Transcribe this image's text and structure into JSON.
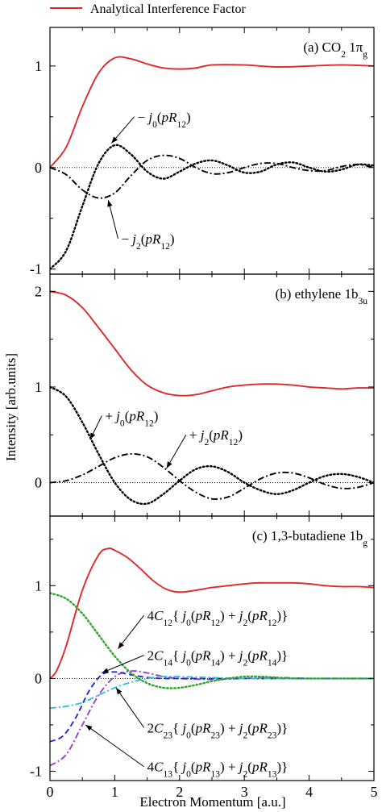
{
  "legend": {
    "label": "Analytical Interference Factor",
    "color": "#e0282b"
  },
  "xlabel": "Electron Momentum [a.u.]",
  "ylabel": "Intensity [arb.units]",
  "colors": {
    "analytical": "#e0282b",
    "black": "#000000",
    "green": "#2aa82a",
    "blue": "#1f2bd8",
    "cyan": "#2bc4d8",
    "purple": "#9a3fd0"
  },
  "chart_data": [
    {
      "type": "line",
      "panel": "a",
      "title_main": "(a) CO",
      "title_sub": "2",
      "title_tail": " 1π",
      "title_tail_sub": "g",
      "xlim": [
        0,
        5
      ],
      "ylim": [
        -1.05,
        1.38
      ],
      "xticks": [
        0,
        1,
        2,
        3,
        4,
        5
      ],
      "yticks": [
        -1,
        0,
        1
      ],
      "ytick_labels": [
        "-1",
        "0",
        "1"
      ],
      "legend": "top-left",
      "series": [
        {
          "name": "Analytical Interference Factor",
          "color": "analytical",
          "style": "solid",
          "x": [
            0,
            0.25,
            0.5,
            0.75,
            1.0,
            1.25,
            1.5,
            1.75,
            2.0,
            2.25,
            2.5,
            3.0,
            3.5,
            4.0,
            4.5,
            5.0
          ],
          "y": [
            0,
            0.2,
            0.6,
            0.93,
            1.08,
            1.07,
            1.02,
            0.98,
            0.97,
            0.98,
            1.01,
            1.01,
            0.99,
            1.0,
            1.01,
            1.0
          ]
        },
        {
          "name": "− j0(pR12)",
          "color": "black",
          "style": "dotted",
          "x": [
            0,
            0.25,
            0.5,
            0.75,
            1.0,
            1.25,
            1.5,
            1.75,
            2.0,
            2.25,
            2.5,
            2.75,
            3.0,
            3.25,
            3.5,
            3.75,
            4.0,
            4.25,
            4.5,
            4.75,
            5.0
          ],
          "y": [
            -1.0,
            -0.82,
            -0.38,
            0.04,
            0.22,
            0.13,
            -0.04,
            -0.11,
            -0.04,
            0.04,
            0.07,
            0.02,
            -0.05,
            -0.04,
            0.03,
            0.05,
            0.0,
            -0.04,
            -0.02,
            0.03,
            0.02
          ]
        },
        {
          "name": "− j2(pR12)",
          "color": "black",
          "style": "dashdot",
          "x": [
            0,
            0.25,
            0.5,
            0.75,
            1.0,
            1.25,
            1.5,
            1.75,
            2.0,
            2.25,
            2.5,
            2.75,
            3.0,
            3.25,
            3.5,
            3.75,
            4.0,
            4.25,
            4.5,
            4.75,
            5.0
          ],
          "y": [
            0,
            -0.07,
            -0.22,
            -0.3,
            -0.25,
            -0.08,
            0.07,
            0.12,
            0.09,
            0.0,
            -0.06,
            -0.05,
            0.0,
            0.04,
            0.04,
            0.0,
            -0.03,
            -0.03,
            0.01,
            0.03,
            0.0
          ]
        }
      ],
      "annotations": [
        {
          "text_pre": "− ",
          "text_it": "j",
          "sub": "0",
          "text_post": "(",
          "text_it2": "pR",
          "sub2": "12",
          "text_end": ")",
          "x": 1.35,
          "y": 0.5,
          "arrow_to": [
            0.95,
            0.24
          ]
        },
        {
          "text_pre": "− ",
          "text_it": "j",
          "sub": "2",
          "text_post": "(",
          "text_it2": "pR",
          "sub2": "12",
          "text_end": ")",
          "x": 1.1,
          "y": -0.7,
          "arrow_to": [
            0.9,
            -0.32
          ]
        }
      ]
    },
    {
      "type": "line",
      "panel": "b",
      "title_main": "(b) ethylene 1b",
      "title_sub": "3u",
      "title_tail": "",
      "title_tail_sub": "",
      "xlim": [
        0,
        5
      ],
      "ylim": [
        -0.35,
        2.18
      ],
      "xticks": [
        0,
        1,
        2,
        3,
        4,
        5
      ],
      "yticks": [
        0,
        1,
        2
      ],
      "ytick_labels": [
        "0",
        "1",
        "2"
      ],
      "series": [
        {
          "name": "Analytical Interference Factor",
          "color": "analytical",
          "style": "solid",
          "x": [
            0,
            0.25,
            0.5,
            0.75,
            1.0,
            1.25,
            1.5,
            1.75,
            2.0,
            2.25,
            2.5,
            2.75,
            3.0,
            3.25,
            3.5,
            3.75,
            4.0,
            4.25,
            4.5,
            4.75,
            5.0
          ],
          "y": [
            2.0,
            1.96,
            1.83,
            1.62,
            1.4,
            1.18,
            1.02,
            0.94,
            0.91,
            0.92,
            0.96,
            1.0,
            1.02,
            1.03,
            1.03,
            1.02,
            1.0,
            0.99,
            0.98,
            0.99,
            0.99
          ]
        },
        {
          "name": "+ j0(pR12)",
          "color": "black",
          "style": "dotted",
          "x": [
            0,
            0.25,
            0.5,
            0.75,
            1.0,
            1.25,
            1.5,
            1.75,
            2.0,
            2.25,
            2.5,
            2.75,
            3.0,
            3.25,
            3.5,
            3.75,
            4.0,
            4.25,
            4.5,
            4.75,
            5.0
          ],
          "y": [
            1.0,
            0.9,
            0.63,
            0.3,
            0.0,
            -0.18,
            -0.22,
            -0.12,
            0.02,
            0.14,
            0.17,
            0.11,
            0.0,
            -0.08,
            -0.12,
            -0.08,
            0.0,
            0.07,
            0.09,
            0.06,
            0.0
          ]
        },
        {
          "name": "+ j2(pR12)",
          "color": "black",
          "style": "dashdot",
          "x": [
            0,
            0.25,
            0.5,
            0.75,
            1.0,
            1.25,
            1.5,
            1.75,
            2.0,
            2.25,
            2.5,
            2.75,
            3.0,
            3.25,
            3.5,
            3.75,
            4.0,
            4.25,
            4.5,
            4.75,
            5.0
          ],
          "y": [
            0,
            0.02,
            0.08,
            0.17,
            0.26,
            0.3,
            0.27,
            0.16,
            0.02,
            -0.1,
            -0.17,
            -0.15,
            -0.06,
            0.04,
            0.1,
            0.1,
            0.05,
            -0.02,
            -0.06,
            -0.05,
            0.0
          ]
        }
      ],
      "annotations": [
        {
          "text_pre": "+ ",
          "text_it": "j",
          "sub": "0",
          "text_post": "(",
          "text_it2": "pR",
          "sub2": "12",
          "text_end": ")",
          "x": 0.85,
          "y": 0.7,
          "arrow_to": [
            0.62,
            0.45
          ]
        },
        {
          "text_pre": "+ ",
          "text_it": "j",
          "sub": "2",
          "text_post": "(",
          "text_it2": "pR",
          "sub2": "12",
          "text_end": ")",
          "x": 2.15,
          "y": 0.5,
          "arrow_to": [
            1.8,
            0.15
          ]
        }
      ]
    },
    {
      "type": "line",
      "panel": "c",
      "title_main": "(c) 1,3-butadiene 1b",
      "title_sub": "g",
      "title_tail": "",
      "title_tail_sub": "",
      "xlim": [
        0,
        5
      ],
      "ylim": [
        -1.1,
        1.75
      ],
      "xticks": [
        0,
        1,
        2,
        3,
        4,
        5
      ],
      "yticks": [
        -1,
        0,
        1
      ],
      "ytick_labels": [
        "-1",
        "0",
        "1"
      ],
      "xtick_labels": [
        "0",
        "1",
        "2",
        "3",
        "4",
        "5"
      ],
      "series": [
        {
          "name": "Analytical Interference Factor",
          "color": "analytical",
          "style": "solid",
          "x": [
            0,
            0.1,
            0.25,
            0.5,
            0.75,
            0.9,
            1.0,
            1.2,
            1.4,
            1.6,
            1.8,
            2.0,
            2.25,
            2.5,
            2.75,
            3.0,
            3.25,
            3.5,
            3.75,
            4.0,
            4.25,
            4.5,
            4.75,
            5.0
          ],
          "y": [
            0,
            0.08,
            0.35,
            0.95,
            1.33,
            1.4,
            1.38,
            1.3,
            1.18,
            1.05,
            0.96,
            0.93,
            0.95,
            0.98,
            1.0,
            1.02,
            1.03,
            1.03,
            1.03,
            1.02,
            1.0,
            0.99,
            0.99,
            0.98
          ]
        },
        {
          "name": "4C13",
          "color": "purple",
          "style": "dashdot",
          "x": [
            0,
            0.25,
            0.5,
            0.75,
            1.0,
            1.25,
            1.5,
            1.75,
            2.0,
            2.5,
            3.0,
            3.5,
            4.0,
            4.5,
            5.0
          ],
          "y": [
            -0.94,
            -0.82,
            -0.5,
            -0.18,
            0.02,
            0.08,
            0.06,
            0.02,
            0.0,
            -0.01,
            0.0,
            0.01,
            0.0,
            0.0,
            0.0
          ]
        },
        {
          "name": "2C14",
          "color": "blue",
          "style": "dashed",
          "x": [
            0,
            0.2,
            0.4,
            0.6,
            0.8,
            1.0,
            1.25,
            1.5,
            1.75,
            2.0,
            2.5,
            3.0,
            3.5,
            4.0,
            4.5,
            5.0
          ],
          "y": [
            -0.68,
            -0.62,
            -0.42,
            -0.14,
            0.04,
            0.07,
            0.04,
            0.01,
            0.0,
            0.0,
            0.0,
            0.0,
            0.0,
            0.0,
            0.0,
            0.0
          ]
        },
        {
          "name": "2C23",
          "color": "cyan",
          "style": "dashdot",
          "x": [
            0,
            0.25,
            0.5,
            0.75,
            1.0,
            1.25,
            1.5,
            1.75,
            2.0,
            2.5,
            3.0,
            3.5,
            4.0,
            4.5,
            5.0
          ],
          "y": [
            -0.32,
            -0.3,
            -0.26,
            -0.18,
            -0.1,
            -0.04,
            0.0,
            0.02,
            0.02,
            0.01,
            0.0,
            0.0,
            0.0,
            0.0,
            0.0
          ]
        },
        {
          "name": "4C12",
          "color": "green",
          "style": "dotted",
          "x": [
            0,
            0.25,
            0.5,
            0.75,
            1.0,
            1.25,
            1.5,
            1.75,
            2.0,
            2.25,
            2.5,
            2.75,
            3.0,
            3.25,
            3.5,
            3.75,
            4.0,
            4.5,
            5.0
          ],
          "y": [
            0.92,
            0.86,
            0.7,
            0.47,
            0.24,
            0.06,
            -0.05,
            -0.1,
            -0.1,
            -0.07,
            -0.03,
            0.0,
            0.02,
            0.02,
            0.01,
            0.0,
            0.0,
            0.0,
            0.0
          ]
        }
      ],
      "annotations": [
        {
          "text_pre": "4",
          "text_it": "C",
          "sub": "12",
          "text_post": "{",
          "text_it2": "j",
          "sub2": "0",
          "text_end": "(pR12) + j2(pR12)}",
          "rich": [
            [
              "n",
              "4"
            ],
            [
              "i",
              "C"
            ],
            [
              "s",
              "12"
            ],
            [
              "n",
              "{ "
            ],
            [
              "i",
              "j"
            ],
            [
              "s",
              "0"
            ],
            [
              "n",
              "("
            ],
            [
              "i",
              "pR"
            ],
            [
              "s",
              "12"
            ],
            [
              "n",
              ") + "
            ],
            [
              "i",
              "j"
            ],
            [
              "s",
              "2"
            ],
            [
              "n",
              "("
            ],
            [
              "i",
              "pR"
            ],
            [
              "s",
              "12"
            ],
            [
              "n",
              ")}"
            ]
          ],
          "x": 1.5,
          "y": 0.68,
          "arrow_to": [
            1.05,
            0.32
          ]
        },
        {
          "rich": [
            [
              "n",
              "2"
            ],
            [
              "i",
              "C"
            ],
            [
              "s",
              "14"
            ],
            [
              "n",
              "{ "
            ],
            [
              "i",
              "j"
            ],
            [
              "s",
              "0"
            ],
            [
              "n",
              "("
            ],
            [
              "i",
              "pR"
            ],
            [
              "s",
              "14"
            ],
            [
              "n",
              ") + "
            ],
            [
              "i",
              "j"
            ],
            [
              "s",
              "2"
            ],
            [
              "n",
              "("
            ],
            [
              "i",
              "pR"
            ],
            [
              "s",
              "14"
            ],
            [
              "n",
              ")}"
            ]
          ],
          "x": 1.5,
          "y": 0.25,
          "arrow_to": [
            0.8,
            0.06
          ]
        },
        {
          "rich": [
            [
              "n",
              "2"
            ],
            [
              "i",
              "C"
            ],
            [
              "s",
              "23"
            ],
            [
              "n",
              "{ "
            ],
            [
              "i",
              "j"
            ],
            [
              "s",
              "0"
            ],
            [
              "n",
              "("
            ],
            [
              "i",
              "pR"
            ],
            [
              "s",
              "23"
            ],
            [
              "n",
              ") + "
            ],
            [
              "i",
              "j"
            ],
            [
              "s",
              "2"
            ],
            [
              "n",
              "("
            ],
            [
              "i",
              "pR"
            ],
            [
              "s",
              "23"
            ],
            [
              "n",
              ")}"
            ]
          ],
          "x": 1.5,
          "y": -0.53,
          "arrow_to": [
            1.02,
            -0.1
          ]
        },
        {
          "rich": [
            [
              "n",
              "4"
            ],
            [
              "i",
              "C"
            ],
            [
              "s",
              "13"
            ],
            [
              "n",
              "{ "
            ],
            [
              "i",
              "j"
            ],
            [
              "s",
              "0"
            ],
            [
              "n",
              "("
            ],
            [
              "i",
              "pR"
            ],
            [
              "s",
              "13"
            ],
            [
              "n",
              ") + "
            ],
            [
              "i",
              "j"
            ],
            [
              "s",
              "2"
            ],
            [
              "n",
              "("
            ],
            [
              "i",
              "pR"
            ],
            [
              "s",
              "13"
            ],
            [
              "n",
              ")}"
            ]
          ],
          "x": 1.5,
          "y": -0.95,
          "arrow_to": [
            0.55,
            -0.5
          ]
        }
      ]
    }
  ]
}
